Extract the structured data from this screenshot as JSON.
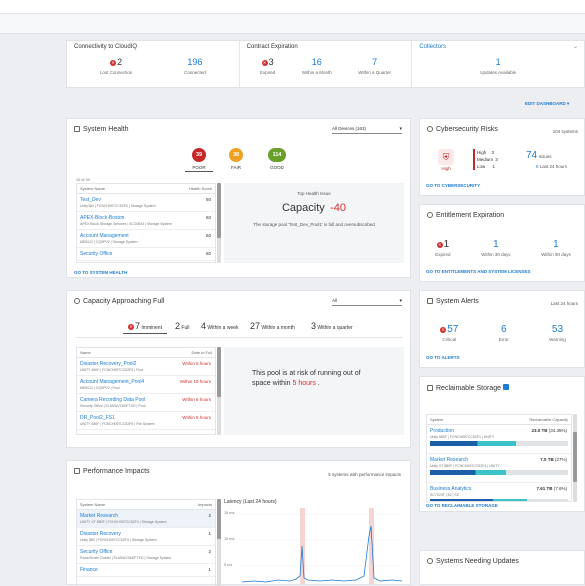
{
  "summary": {
    "connectivity": {
      "title": "Connectivity to CloudIQ",
      "lost_value": "2",
      "lost_label": "Lost Connection",
      "connected_value": "196",
      "connected_label": "Connected"
    },
    "contract": {
      "title": "Contract Expiration",
      "expired_value": "3",
      "expired_label": "Expired",
      "month_value": "16",
      "month_label": "Within a Month",
      "quarter_value": "7",
      "quarter_label": "Within a Quarter"
    },
    "collectors": {
      "title": "Collectors",
      "updates_value": "1",
      "updates_label": "Updates Available"
    }
  },
  "edit_dashboard": "EDIT DASHBOARD",
  "system_health": {
    "title": "System Health",
    "filter": "All Devices (163)",
    "poor_value": "39",
    "poor_label": "POOR",
    "fair_value": "38",
    "fair_label": "FAIR",
    "good_value": "114",
    "good_label": "GOOD",
    "count_label": "10 of 39",
    "col_system": "System Name",
    "col_score": "Health Score",
    "items": [
      {
        "name": "Test_Dev",
        "sub": "Unity384 | FCNCH097CC52F0 | Storage System",
        "score": "60"
      },
      {
        "name": "APEX-Block-Boston",
        "sub": "APEX Block Storage Services | 4CC0643 | Storage System",
        "score": "60"
      },
      {
        "name": "Account Management",
        "sub": "ME5012 | CQ0PV2 | Storage System",
        "score": "60"
      },
      {
        "name": "Security Office",
        "sub": "",
        "score": "60"
      }
    ],
    "top_issue_label": "Top Health Issue",
    "issue_name": "Capacity",
    "issue_value": "-40",
    "issue_desc": "The storage pool 'Test_Dev_Pool1' is full and oversubscribed",
    "footer": "GO TO SYSTEM HEALTH"
  },
  "capacity": {
    "title": "Capacity Approaching Full",
    "filter": "All",
    "tabs": [
      {
        "n": "7",
        "l": "Imminent"
      },
      {
        "n": "2",
        "l": "Full"
      },
      {
        "n": "4",
        "l": "Within a week"
      },
      {
        "n": "27",
        "l": "Within a month"
      },
      {
        "n": "3",
        "l": "Within a quarter"
      }
    ],
    "col_name": "Name",
    "col_date": "Date to Full",
    "items": [
      {
        "name": "Disaster Recovery_Pool2",
        "sub": "UNITY 480F | FCNCH097CC52F5 | Pool",
        "val": "Within 5 hours"
      },
      {
        "name": "Account Management_Pool4",
        "sub": "ME5012 | CQ0PV2 | Pool",
        "val": "Within 19 hours"
      },
      {
        "name": "Camera Recording Data Pool",
        "sub": "Security Office | ELM0UVX6DFTXD | Pool",
        "val": "Within 6 hours"
      },
      {
        "name": "DR_Pool2_FS1",
        "sub": "UNITY 480F | FCNCH097CC52F5 | File System",
        "val": "Within 5 hours"
      }
    ],
    "msg_prefix": "This pool is at risk of running out of space within",
    "msg_time": "5 hours",
    "msg_suffix": "."
  },
  "performance": {
    "title": "Performance Impacts",
    "subtitle": "5 systems with performance impacts",
    "col_system": "System Name",
    "col_impacts": "Impacts",
    "chart_title": "Latency (Last 24 hours)",
    "items": [
      {
        "name": "Market Research",
        "sub": "UNITY XT 880F | FCNCH097CC52F4 | Storage System",
        "val": "2"
      },
      {
        "name": "Disaster Recovery",
        "sub": "Unity 880 | FCNCH097CC52F4 | Storage System",
        "val": "1"
      },
      {
        "name": "Security Office",
        "sub": "PowerScale Cluster | ELM0UVX6DFTXD | Storage System",
        "val": "2"
      },
      {
        "name": "Finance",
        "sub": "",
        "val": "1"
      }
    ],
    "y_labels": [
      "15 ms",
      "10 ms",
      "5 ms"
    ]
  },
  "cyber": {
    "title": "Cybersecurity Risks",
    "systems": "104 systems",
    "level": "High",
    "high_label": "High",
    "high_val": "3",
    "med_label": "Medium",
    "med_val": "3",
    "low_label": "Low",
    "low_val": "1",
    "issues_val": "74",
    "issues_label": "Issues",
    "last_val": "8",
    "last_label": "Last 24 hours",
    "footer": "GO TO CYBERSECURITY"
  },
  "entitlement": {
    "title": "Entitlement Expiration",
    "expired_val": "1",
    "expired_label": "Expired",
    "d30_val": "1",
    "d30_label": "Within 30 days",
    "d90_val": "1",
    "d90_label": "Within 90 days",
    "footer": "GO TO ENTITLEMENTS AND SYSTEM LICENSES"
  },
  "alerts": {
    "title": "System Alerts",
    "range": "Last 24 hours",
    "critical_val": "57",
    "critical_label": "Critical",
    "error_val": "6",
    "error_label": "Error",
    "warning_val": "53",
    "warning_label": "Warning",
    "footer": "GO TO ALERTS"
  },
  "reclaim": {
    "title": "Reclaimable Storage",
    "col_system": "System",
    "col_cap": "Reclaimable Capacity",
    "items": [
      {
        "name": "Production",
        "sub": "Unity 680F | FCNCH097CC52F1 | UNITY",
        "val": "23.0 TB",
        "pct": "(34.35%)",
        "fill": 0.62
      },
      {
        "name": "Market Research",
        "sub": "Unity XT 880F | FCNCH097CC52F4 | UNITY",
        "val": "7.0 TB",
        "pct": "(27%)",
        "fill": 0.55
      },
      {
        "name": "Business Analytics",
        "sub": "SC7020F | 82 | SC",
        "val": "7.61 TB",
        "pct": "(7.6%)",
        "fill": 0.7
      }
    ],
    "footer": "GO TO RECLAIMABLE STORAGE"
  },
  "needing_updates": {
    "title": "Systems Needing Updates"
  }
}
